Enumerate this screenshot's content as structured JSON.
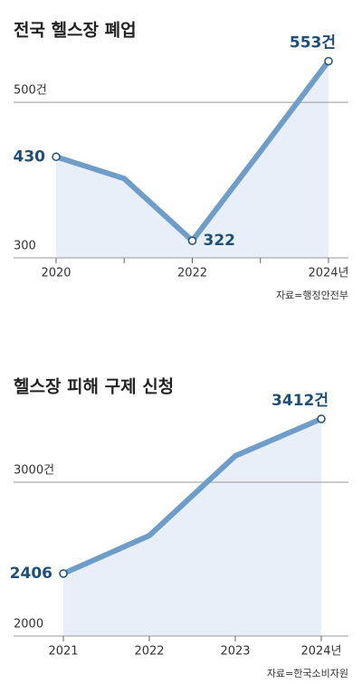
{
  "chart_data": [
    {
      "type": "line",
      "title": "전국 헬스장 폐업",
      "categories": [
        "2020",
        null,
        "2022",
        null,
        "2024년"
      ],
      "values": [
        430,
        402,
        322,
        437,
        553
      ],
      "value_labels": [
        "430",
        null,
        "322",
        null,
        "553건"
      ],
      "color": "#6d9dc8",
      "ylim": [
        300,
        570
      ],
      "yticks": [
        300,
        {
          "value": 500,
          "label": "500건"
        }
      ],
      "source": "자료=행정안전부"
    },
    {
      "type": "line",
      "title": "헬스장 피해 구제 신청",
      "categories": [
        "2021",
        "2022",
        "2023",
        "2024년"
      ],
      "values": [
        2406,
        2653,
        3171,
        3412
      ],
      "value_labels": [
        "2406",
        null,
        null,
        "3412건"
      ],
      "color": "#6d9dc8",
      "ylim": [
        2000,
        3500
      ],
      "yticks": [
        2000,
        {
          "value": 3000,
          "label": "3000건"
        }
      ],
      "source": "자료=한국소비자원"
    }
  ]
}
